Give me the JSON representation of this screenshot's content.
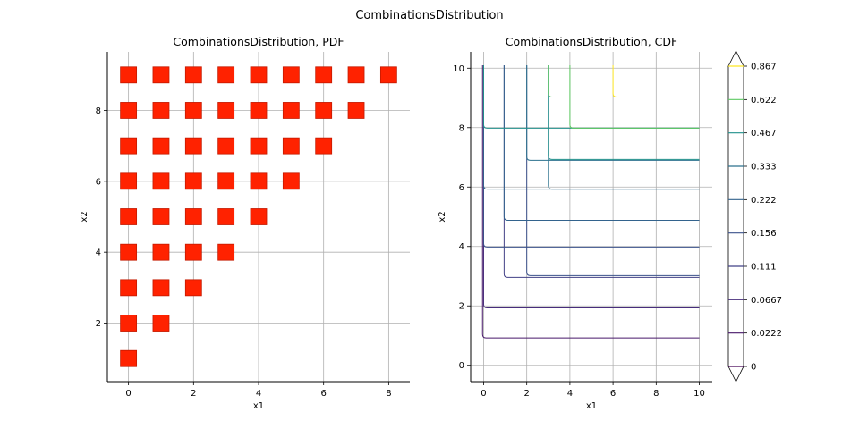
{
  "figure": {
    "suptitle": "CombinationsDistribution"
  },
  "chart_data": [
    {
      "type": "scatter",
      "title": "CombinationsDistribution, PDF",
      "xlabel": "x1",
      "ylabel": "x2",
      "xlim": [
        -0.65,
        8.65
      ],
      "ylim": [
        0.35,
        9.65
      ],
      "xticks": [
        0,
        2,
        4,
        6,
        8
      ],
      "yticks": [
        2,
        4,
        6,
        8
      ],
      "grid": true,
      "marker": "square",
      "color": "#ff2200",
      "edgecolor": "#c41a00",
      "points": [
        [
          0,
          1
        ],
        [
          0,
          2
        ],
        [
          1,
          2
        ],
        [
          0,
          3
        ],
        [
          1,
          3
        ],
        [
          2,
          3
        ],
        [
          0,
          4
        ],
        [
          1,
          4
        ],
        [
          2,
          4
        ],
        [
          3,
          4
        ],
        [
          0,
          5
        ],
        [
          1,
          5
        ],
        [
          2,
          5
        ],
        [
          3,
          5
        ],
        [
          4,
          5
        ],
        [
          0,
          6
        ],
        [
          1,
          6
        ],
        [
          2,
          6
        ],
        [
          3,
          6
        ],
        [
          4,
          6
        ],
        [
          5,
          6
        ],
        [
          0,
          7
        ],
        [
          1,
          7
        ],
        [
          2,
          7
        ],
        [
          3,
          7
        ],
        [
          4,
          7
        ],
        [
          5,
          7
        ],
        [
          6,
          7
        ],
        [
          0,
          8
        ],
        [
          1,
          8
        ],
        [
          2,
          8
        ],
        [
          3,
          8
        ],
        [
          4,
          8
        ],
        [
          5,
          8
        ],
        [
          6,
          8
        ],
        [
          7,
          8
        ],
        [
          0,
          9
        ],
        [
          1,
          9
        ],
        [
          2,
          9
        ],
        [
          3,
          9
        ],
        [
          4,
          9
        ],
        [
          5,
          9
        ],
        [
          6,
          9
        ],
        [
          7,
          9
        ],
        [
          8,
          9
        ]
      ]
    },
    {
      "type": "contour",
      "title": "CombinationsDistribution, CDF",
      "xlabel": "x1",
      "ylabel": "x2",
      "xlim": [
        -0.6,
        10.6
      ],
      "ylim": [
        -0.55,
        10.55
      ],
      "xticks": [
        0,
        2,
        4,
        6,
        8,
        10
      ],
      "yticks": [
        0,
        2,
        4,
        6,
        8,
        10
      ],
      "grid": true,
      "levels": [
        "0",
        "0.0222",
        "0.0667",
        "0.111",
        "0.156",
        "0.222",
        "0.333",
        "0.467",
        "0.622",
        "0.867"
      ],
      "level_colors": [
        "#440154",
        "#48186a",
        "#472d7b",
        "#424086",
        "#3b528b",
        "#33638d",
        "#2c728e",
        "#21918c",
        "#5ec962",
        "#fde725"
      ],
      "contour_lines": [
        {
          "level": "0.0222",
          "color": "#48186a",
          "x0": -0.05,
          "y_top": 10.1,
          "y_bottom": 0.92
        },
        {
          "level": "0.0667",
          "color": "#472d7b",
          "x0": 0.0,
          "y_top": 10.1,
          "y_bottom": 1.93
        },
        {
          "level": "0.111",
          "color": "#424086",
          "x0": 0.95,
          "y_top": 10.1,
          "y_bottom": 2.96
        },
        {
          "level": "0.156",
          "color": "#3b528b",
          "x0": 2.0,
          "y_top": 10.1,
          "y_bottom": 3.02
        },
        {
          "level": "0.156",
          "color": "#3b528b",
          "x0": 0.0,
          "y_top": 10.1,
          "y_bottom": 3.98
        },
        {
          "level": "0.222",
          "color": "#33638d",
          "x0": 0.95,
          "y_top": 10.1,
          "y_bottom": 4.88
        },
        {
          "level": "0.222",
          "color": "#33638d",
          "x0": 0.0,
          "y_top": 10.1,
          "y_bottom": 5.93
        },
        {
          "level": "0.333",
          "color": "#2c728e",
          "x0": 3.0,
          "y_top": 10.1,
          "y_bottom": 5.93
        },
        {
          "level": "0.333",
          "color": "#2c728e",
          "x0": 2.0,
          "y_top": 10.1,
          "y_bottom": 6.9
        },
        {
          "level": "0.467",
          "color": "#21918c",
          "x0": 3.0,
          "y_top": 10.1,
          "y_bottom": 6.93
        },
        {
          "level": "0.467",
          "color": "#21918c",
          "x0": 0.0,
          "y_top": 10.1,
          "y_bottom": 7.98
        },
        {
          "level": "0.622",
          "color": "#5ec962",
          "x0": 4.0,
          "y_top": 10.1,
          "y_bottom": 7.98
        },
        {
          "level": "0.622",
          "color": "#5ec962",
          "x0": 3.0,
          "y_top": 10.1,
          "y_bottom": 9.03
        },
        {
          "level": "0.867",
          "color": "#fde725",
          "x0": 6.0,
          "y_top": 10.1,
          "y_bottom": 9.03
        }
      ],
      "colorbar": {
        "extend": "both",
        "ticks": [
          "0",
          "0.0222",
          "0.0667",
          "0.111",
          "0.156",
          "0.222",
          "0.333",
          "0.467",
          "0.622",
          "0.867"
        ]
      }
    }
  ]
}
